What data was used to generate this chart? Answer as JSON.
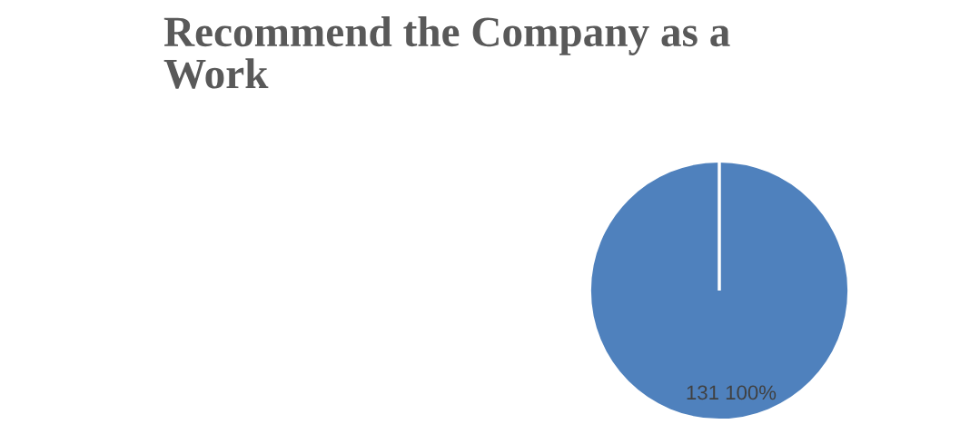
{
  "chart_data": {
    "type": "pie",
    "title": "Recommend the Company as a\nWork",
    "categories": [
      null,
      null
    ],
    "values": [
      131,
      0
    ],
    "colors": [
      "#4f81bd",
      "#c0504d"
    ],
    "data_labels": true,
    "annotations": [
      "100%"
    ]
  }
}
